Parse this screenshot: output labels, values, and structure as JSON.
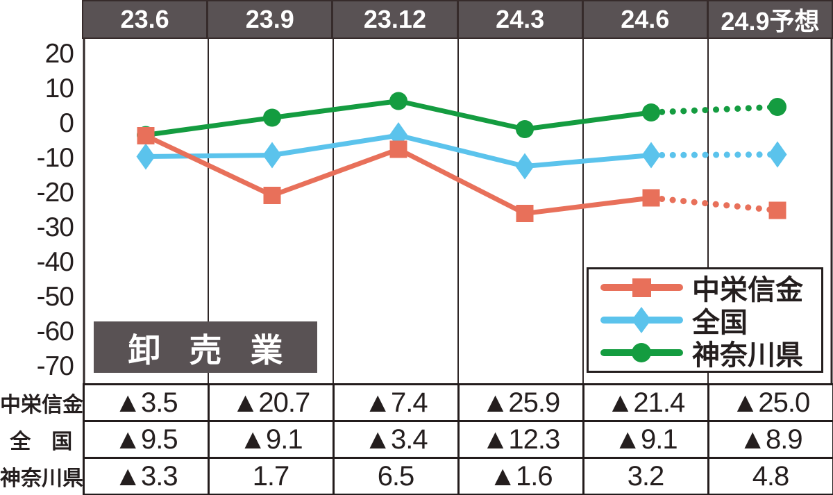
{
  "chart_data": {
    "type": "line",
    "title": "",
    "badge": "卸 売 業",
    "categories": [
      "23.6",
      "23.9",
      "23.12",
      "24.3",
      "24.6",
      "24.9予想"
    ],
    "series": [
      {
        "name": "中栄信金",
        "color": "#E8705A",
        "marker": "square",
        "values": [
          -3.5,
          -20.7,
          -7.4,
          -25.9,
          -21.4,
          -25.0
        ]
      },
      {
        "name": "全国",
        "color": "#5BC3EC",
        "marker": "diamond",
        "values": [
          -9.5,
          -9.1,
          -3.4,
          -12.3,
          -9.1,
          -8.9
        ]
      },
      {
        "name": "神奈川県",
        "color": "#149C40",
        "marker": "circle",
        "values": [
          -3.3,
          1.7,
          6.5,
          -1.6,
          3.2,
          4.8
        ]
      }
    ],
    "yticks": [
      20,
      10,
      0,
      -10,
      -20,
      -30,
      -40,
      -50,
      -60,
      -70
    ],
    "ylim": [
      -74,
      24
    ],
    "grid": "vertical-column-separators-only",
    "legend_position": "bottom-right",
    "forecast_note": "segment from 24.6 to 24.9予想 drawn dotted (forecast)",
    "colors": {
      "header_bg": "#595254",
      "header_border": "#362b2b",
      "table_border": "#231c1c",
      "text": "#241e1e"
    }
  },
  "legend": {
    "entries": [
      {
        "label": "中栄信金"
      },
      {
        "label": "全国"
      },
      {
        "label": "神奈川県"
      }
    ]
  },
  "table": {
    "rows": [
      {
        "label": "中栄信金",
        "values": [
          "▲3.5",
          "▲20.7",
          "▲7.4",
          "▲25.9",
          "▲21.4",
          "▲25.0"
        ]
      },
      {
        "label": "全　国",
        "values": [
          "▲9.5",
          "▲9.1",
          "▲3.4",
          "▲12.3",
          "▲9.1",
          "▲8.9"
        ]
      },
      {
        "label": "神奈川県",
        "values": [
          "▲3.3",
          "1.7",
          "6.5",
          "▲1.6",
          "3.2",
          "4.8"
        ]
      }
    ]
  }
}
